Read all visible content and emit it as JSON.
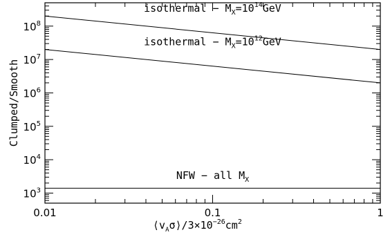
{
  "chart_data": {
    "type": "line",
    "xscale": "log",
    "yscale": "log",
    "xlim": [
      0.01,
      1
    ],
    "ylim": [
      500,
      500000000
    ],
    "grid": false,
    "xlabel": {
      "langle": "⟨",
      "v": "v",
      "sub": "A",
      "sigma": "σ",
      "rangle": "⟩",
      "rest": "/3×10",
      "exp": "−26",
      "unit": "cm",
      "unit_exp": "2"
    },
    "ylabel": "Clumped/Smooth",
    "x_ticks": [
      {
        "value": 0.01,
        "label": "0.01"
      },
      {
        "value": 0.1,
        "label": "0.1"
      },
      {
        "value": 1,
        "label": "1"
      }
    ],
    "y_ticks": [
      {
        "value": 1000,
        "base": "10",
        "exp": "3"
      },
      {
        "value": 10000,
        "base": "10",
        "exp": "4"
      },
      {
        "value": 100000,
        "base": "10",
        "exp": "5"
      },
      {
        "value": 1000000,
        "base": "10",
        "exp": "6"
      },
      {
        "value": 10000000,
        "base": "10",
        "exp": "7"
      },
      {
        "value": 100000000,
        "base": "10",
        "exp": "8"
      }
    ],
    "series": [
      {
        "x": [
          0.01,
          1
        ],
        "y": [
          200000000,
          20000000
        ],
        "label": {
          "prefix": "isothermal − M",
          "sub": "X",
          "mid": "=10",
          "sup": "14",
          "suffix": "GeV"
        },
        "label_at": {
          "x": 0.1,
          "y": 200000000
        }
      },
      {
        "x": [
          0.01,
          1
        ],
        "y": [
          20000000,
          2000000
        ],
        "label": {
          "prefix": "isothermal − M",
          "sub": "X",
          "mid": "=10",
          "sup": "12",
          "suffix": "GeV"
        },
        "label_at": {
          "x": 0.1,
          "y": 20000000
        }
      },
      {
        "x": [
          0.01,
          1
        ],
        "y": [
          1400,
          1400
        ],
        "label": {
          "prefix": "NFW − all M",
          "sub": "X",
          "mid": "",
          "sup": "",
          "suffix": ""
        },
        "label_at": {
          "x": 0.1,
          "y": 2000
        }
      }
    ]
  }
}
